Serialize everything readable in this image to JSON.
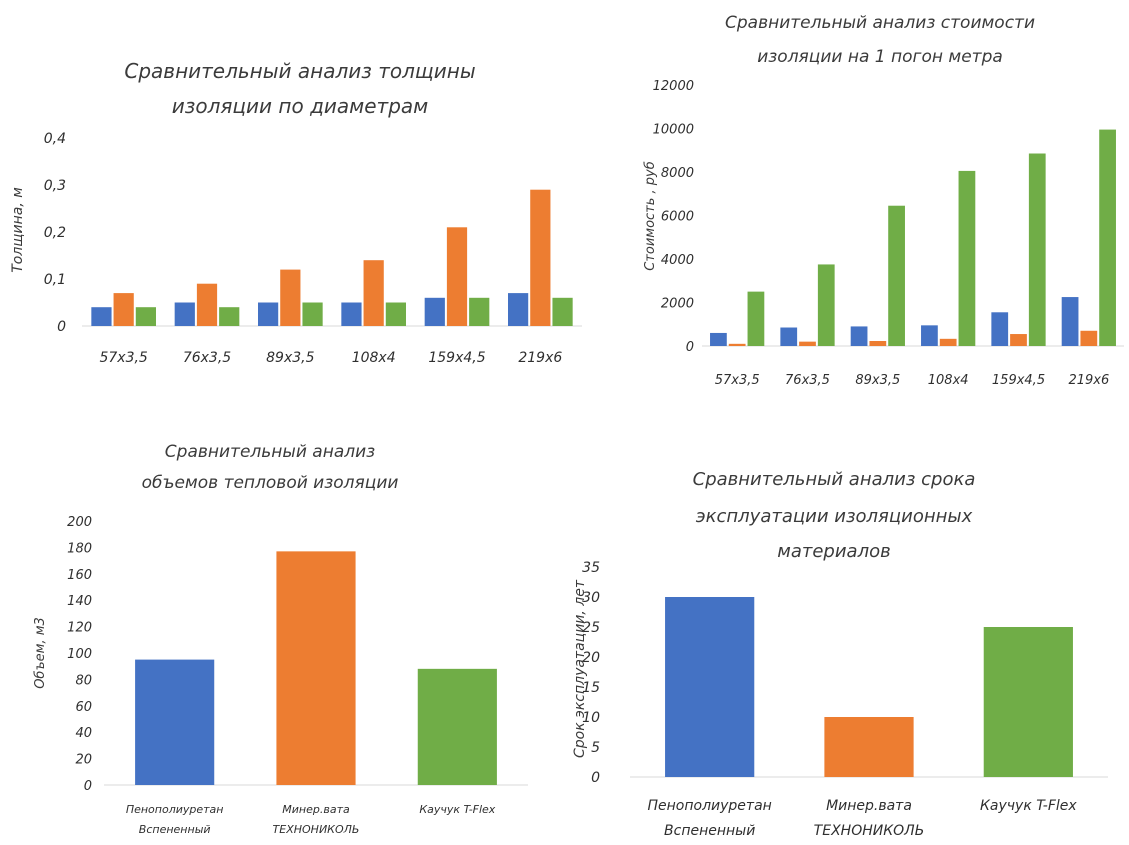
{
  "colors": {
    "blue": "#4472C4",
    "orange": "#ED7D31",
    "green": "#70AD47",
    "axis": "#d9d9d9",
    "text": "#333333"
  },
  "chart_data": [
    {
      "type": "bar",
      "title_lines": [
        "Сравнительный анализ толщины",
        "изоляции по диаметрам"
      ],
      "ylabel": "Толщина, м",
      "xlabel": "",
      "categories": [
        "57x3,5",
        "76x3,5",
        "89x3,5",
        "108x4",
        "159x4,5",
        "219x6"
      ],
      "series": [
        {
          "color": "blue",
          "values": [
            0.04,
            0.05,
            0.05,
            0.05,
            0.06,
            0.07
          ]
        },
        {
          "color": "orange",
          "values": [
            0.07,
            0.09,
            0.12,
            0.14,
            0.21,
            0.29
          ]
        },
        {
          "color": "green",
          "values": [
            0.04,
            0.04,
            0.05,
            0.05,
            0.06,
            0.06
          ]
        }
      ],
      "ylim": [
        0,
        0.4
      ],
      "yticks": [
        "0",
        "0,1",
        "0,2",
        "0,3",
        "0,4"
      ],
      "grid": false,
      "legend": "none"
    },
    {
      "type": "bar",
      "title_lines": [
        "Сравнительный анализ стоимости",
        "изоляции на 1 погон метра"
      ],
      "ylabel": "Стоимость , руб",
      "xlabel": "",
      "categories": [
        "57x3,5",
        "76x3,5",
        "89x3,5",
        "108x4",
        "159x4,5",
        "219x6"
      ],
      "series": [
        {
          "color": "blue",
          "values": [
            600,
            850,
            900,
            950,
            1550,
            2250
          ]
        },
        {
          "color": "orange",
          "values": [
            100,
            200,
            230,
            330,
            550,
            700
          ]
        },
        {
          "color": "green",
          "values": [
            2500,
            3750,
            6450,
            8050,
            8850,
            9950
          ]
        }
      ],
      "ylim": [
        0,
        12000
      ],
      "yticks": [
        "0",
        "2000",
        "4000",
        "6000",
        "8000",
        "10000",
        "12000"
      ],
      "grid": false,
      "legend": "none"
    },
    {
      "type": "bar",
      "title_lines": [
        "Сравнительный анализ",
        "объемов тепловой изоляции"
      ],
      "ylabel": "Объем, м3",
      "xlabel": "",
      "categories": [
        [
          "Пенополиуретан",
          "Вспененный"
        ],
        [
          "Минер.вата",
          "ТЕХНОНИКОЛЬ"
        ],
        [
          "Каучук T-Flex"
        ]
      ],
      "values": [
        95,
        177,
        88
      ],
      "colors": [
        "blue",
        "orange",
        "green"
      ],
      "ylim": [
        0,
        200
      ],
      "yticks": [
        "0",
        "20",
        "40",
        "60",
        "80",
        "100",
        "120",
        "140",
        "160",
        "180",
        "200"
      ],
      "grid": false,
      "legend": "none"
    },
    {
      "type": "bar",
      "title_lines": [
        "Сравнительный анализ срока",
        "эксплуатации изоляционных",
        "материалов"
      ],
      "ylabel": "Срок эксплуатации, лет",
      "xlabel": "",
      "categories": [
        [
          "Пенополиуретан",
          "Вспененный"
        ],
        [
          "Минер.вата",
          "ТЕХНОНИКОЛЬ"
        ],
        [
          "Каучук T-Flex"
        ]
      ],
      "values": [
        30,
        10,
        25
      ],
      "colors": [
        "blue",
        "orange",
        "green"
      ],
      "ylim": [
        0,
        35
      ],
      "yticks": [
        "0",
        "5",
        "10",
        "15",
        "20",
        "25",
        "30",
        "35"
      ],
      "grid": false,
      "legend": "none"
    }
  ]
}
